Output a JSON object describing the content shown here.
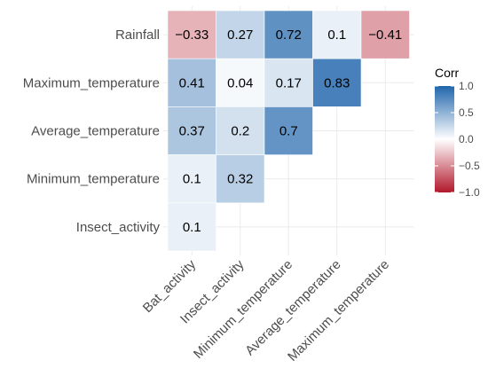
{
  "chart_data": {
    "type": "heatmap",
    "x_categories": [
      "Bat_activity",
      "Insect_activity",
      "Minimum_temperature",
      "Average_temperature",
      "Maximum_temperature"
    ],
    "y_categories": [
      "Rainfall",
      "Maximum_temperature",
      "Average_temperature",
      "Minimum_temperature",
      "Insect_activity"
    ],
    "cells": [
      {
        "x": "Bat_activity",
        "y": "Rainfall",
        "value": -0.33,
        "label": "−0.33"
      },
      {
        "x": "Insect_activity",
        "y": "Rainfall",
        "value": 0.27,
        "label": "0.27"
      },
      {
        "x": "Minimum_temperature",
        "y": "Rainfall",
        "value": 0.72,
        "label": "0.72"
      },
      {
        "x": "Average_temperature",
        "y": "Rainfall",
        "value": 0.1,
        "label": "0.1"
      },
      {
        "x": "Maximum_temperature",
        "y": "Rainfall",
        "value": -0.41,
        "label": "−0.41"
      },
      {
        "x": "Bat_activity",
        "y": "Maximum_temperature",
        "value": 0.41,
        "label": "0.41"
      },
      {
        "x": "Insect_activity",
        "y": "Maximum_temperature",
        "value": 0.04,
        "label": "0.04"
      },
      {
        "x": "Minimum_temperature",
        "y": "Maximum_temperature",
        "value": 0.17,
        "label": "0.17"
      },
      {
        "x": "Average_temperature",
        "y": "Maximum_temperature",
        "value": 0.83,
        "label": "0.83"
      },
      {
        "x": "Bat_activity",
        "y": "Average_temperature",
        "value": 0.37,
        "label": "0.37"
      },
      {
        "x": "Insect_activity",
        "y": "Average_temperature",
        "value": 0.2,
        "label": "0.2"
      },
      {
        "x": "Minimum_temperature",
        "y": "Average_temperature",
        "value": 0.7,
        "label": "0.7"
      },
      {
        "x": "Bat_activity",
        "y": "Minimum_temperature",
        "value": 0.1,
        "label": "0.1"
      },
      {
        "x": "Insect_activity",
        "y": "Minimum_temperature",
        "value": 0.32,
        "label": "0.32"
      },
      {
        "x": "Bat_activity",
        "y": "Insect_activity",
        "value": 0.1,
        "label": "0.1"
      }
    ],
    "legend": {
      "title": "Corr",
      "position": "right",
      "range": [
        -1.0,
        1.0
      ],
      "ticks": [
        {
          "value": 1.0,
          "label": "1.0"
        },
        {
          "value": 0.5,
          "label": "0.5"
        },
        {
          "value": 0.0,
          "label": "0.0"
        },
        {
          "value": -0.5,
          "label": "−0.5"
        },
        {
          "value": -1.0,
          "label": "−1.0"
        }
      ]
    },
    "grid": true,
    "colors": {
      "low": "#b2182b",
      "mid": "#ffffff",
      "high": "#2166ac",
      "grid": "#ebebeb",
      "background": "#ffffff"
    }
  }
}
